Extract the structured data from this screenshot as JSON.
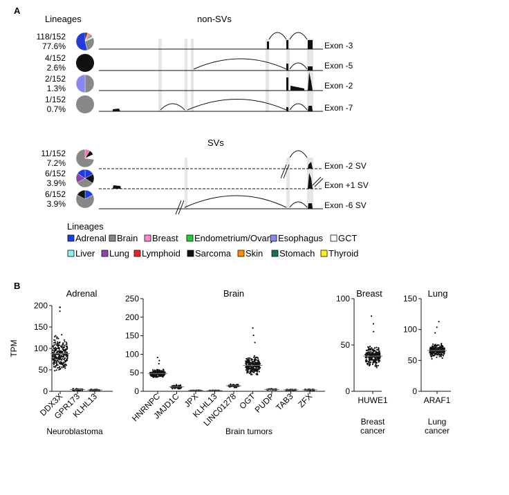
{
  "panel_a": {
    "label": "A",
    "lineages_title": "Lineages",
    "nonsv_title": "non-SVs",
    "sv_title": "SVs",
    "rows": [
      {
        "count": "118/152",
        "pct": "77.6%",
        "exon": "Exon -3",
        "pie": [
          [
            "#111111",
            0.04
          ],
          [
            "#ff8c00",
            0.03
          ],
          [
            "#ff69b4",
            0.04
          ],
          [
            "#22bb33",
            0.03
          ],
          [
            "#8888ee",
            0.02
          ],
          [
            "#ffffff",
            0.02
          ],
          [
            "#888888",
            0.28
          ],
          [
            "#1f3ddb",
            0.54
          ]
        ]
      },
      {
        "count": "4/152",
        "pct": "2.6%",
        "exon": "Exon -5",
        "pie": [
          [
            "#111111",
            1.0
          ]
        ]
      },
      {
        "count": "2/152",
        "pct": "1.3%",
        "exon": "Exon -2",
        "pie": [
          [
            "#888888",
            0.5
          ],
          [
            "#8888ee",
            0.5
          ]
        ]
      },
      {
        "count": "1/152",
        "pct": "0.7%",
        "exon": "Exon -7",
        "pie": [
          [
            "#888888",
            1.0
          ]
        ]
      },
      {
        "count": "11/152",
        "pct": "7.2%",
        "exon": "Exon -2 SV",
        "pie": [
          [
            "#ff69b4",
            0.09
          ],
          [
            "#111111",
            0.09
          ],
          [
            "#ffffff",
            0.09
          ],
          [
            "#888888",
            0.73
          ]
        ]
      },
      {
        "count": "6/152",
        "pct": "3.9%",
        "exon": "Exon +1 SV",
        "pie": [
          [
            "#1f3ddb",
            0.17
          ],
          [
            "#111111",
            0.17
          ],
          [
            "#888888",
            0.33
          ],
          [
            "#8e44ad",
            0.17
          ],
          [
            "#1f3ddb",
            0.16
          ]
        ]
      },
      {
        "count": "6/152",
        "pct": "3.9%",
        "exon": "Exon -6 SV",
        "pie": [
          [
            "#1f3ddb",
            0.17
          ],
          [
            "#888888",
            0.66
          ],
          [
            "#111111",
            0.17
          ]
        ]
      }
    ],
    "legend_title": "Lineages",
    "legend": [
      {
        "label": "Adrenal",
        "color": "#1f3ddb"
      },
      {
        "label": "Brain",
        "color": "#888888"
      },
      {
        "label": "Breast",
        "color": "#ff88cc"
      },
      {
        "label": "Endometrium/Ovary",
        "color": "#22cc33"
      },
      {
        "label": "Esophagus",
        "color": "#8888ee"
      },
      {
        "label": "GCT",
        "color": "#ffffff"
      },
      {
        "label": "Liver",
        "color": "#88eeee"
      },
      {
        "label": "Lung",
        "color": "#8e44ad"
      },
      {
        "label": "Lymphoid",
        "color": "#ee2222"
      },
      {
        "label": "Sarcoma",
        "color": "#111111"
      },
      {
        "label": "Skin",
        "color": "#ff8c00"
      },
      {
        "label": "Stomach",
        "color": "#117744"
      },
      {
        "label": "Thyroid",
        "color": "#ffee22"
      }
    ]
  },
  "chart_data": [
    {
      "type": "scatter",
      "title": "Adrenal",
      "ylabel": "TPM",
      "xlabel": "Neuroblastoma",
      "ylim": [
        0,
        200
      ],
      "yticks": [
        0,
        50,
        100,
        150,
        200
      ],
      "categories": [
        "DDX3X",
        "GPR173",
        "KLHL13"
      ],
      "medians": [
        88,
        4,
        3
      ],
      "spread": [
        45,
        3,
        2
      ]
    },
    {
      "type": "scatter",
      "title": "Brain",
      "xlabel": "Brain tumors",
      "ylim": [
        0,
        250
      ],
      "yticks": [
        0,
        50,
        100,
        150,
        200,
        250
      ],
      "categories": [
        "HNRNPC",
        "JMJD1C",
        "JPX",
        "KLHL13",
        "LINC01278",
        "OGT",
        "PUDP",
        "TAB3",
        "ZFX"
      ],
      "medians": [
        48,
        12,
        2,
        2,
        15,
        70,
        5,
        4,
        4
      ],
      "spread": [
        12,
        6,
        1,
        1,
        5,
        28,
        2,
        2,
        2
      ]
    },
    {
      "type": "scatter",
      "title": "Breast",
      "xlabel": "Breast cancer",
      "xlabel_lines": [
        "Breast",
        "cancer"
      ],
      "ylim": [
        0,
        100
      ],
      "yticks": [
        0,
        50,
        100
      ],
      "categories": [
        "HUWE1"
      ],
      "medians": [
        38
      ],
      "spread": [
        12
      ]
    },
    {
      "type": "scatter",
      "title": "Lung",
      "xlabel": "Lung cancer",
      "xlabel_lines": [
        "Lung",
        "cancer"
      ],
      "ylim": [
        0,
        150
      ],
      "yticks": [
        0,
        50,
        100,
        150
      ],
      "categories": [
        "ARAF1"
      ],
      "medians": [
        66
      ],
      "spread": [
        13
      ]
    }
  ],
  "panel_b_label": "B"
}
